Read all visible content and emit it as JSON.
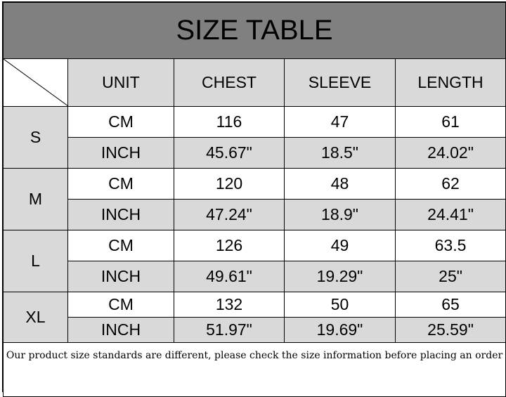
{
  "title": "SIZE TABLE",
  "headers": [
    "UNIT",
    "CHEST",
    "SLEEVE",
    "LENGTH"
  ],
  "sizes": [
    {
      "size": "S",
      "cm": {
        "unit": "CM",
        "chest": "116",
        "sleeve": "47",
        "length": "61"
      },
      "inch": {
        "unit": "INCH",
        "chest": "45.67\"",
        "sleeve": "18.5\"",
        "length": "24.02\""
      }
    },
    {
      "size": "M",
      "cm": {
        "unit": "CM",
        "chest": "120",
        "sleeve": "48",
        "length": "62"
      },
      "inch": {
        "unit": "INCH",
        "chest": "47.24\"",
        "sleeve": "18.9\"",
        "length": "24.41\""
      }
    },
    {
      "size": "L",
      "cm": {
        "unit": "CM",
        "chest": "126",
        "sleeve": "49",
        "length": "63.5"
      },
      "inch": {
        "unit": "INCH",
        "chest": "49.61\"",
        "sleeve": "19.29\"",
        "length": "25\""
      }
    },
    {
      "size": "XL",
      "cm": {
        "unit": "CM",
        "chest": "132",
        "sleeve": "50",
        "length": "65"
      },
      "inch": {
        "unit": "INCH",
        "chest": "51.97\"",
        "sleeve": "19.69\"",
        "length": "25.59\""
      }
    }
  ],
  "footer": "Our product size standards are different, please check the size information before placing an order"
}
